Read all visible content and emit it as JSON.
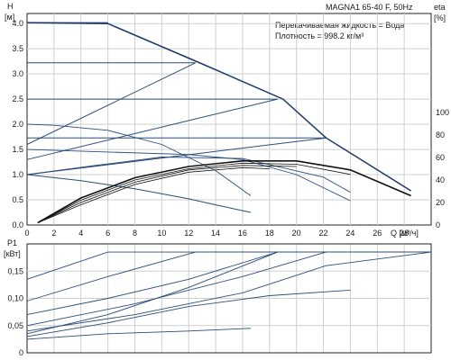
{
  "chart_data": [
    {
      "type": "line",
      "panel": "top",
      "title": "MAGNA1 65-40 F, 50Hz",
      "info": [
        "Перекачиваемая жидкость = Вода",
        "Плотность = 998.2 кг/м³"
      ],
      "xlabel": "Q [м³/ч]",
      "ylabel": [
        "H",
        "[м]"
      ],
      "y2label": [
        "eta",
        "[%]"
      ],
      "xlim": [
        0,
        30
      ],
      "ylim": [
        0,
        4.2
      ],
      "y2lim": [
        0,
        100
      ],
      "xticks": [
        "0",
        "2",
        "4",
        "6",
        "8",
        "10",
        "12",
        "14",
        "16",
        "18",
        "20",
        "22",
        "24",
        "26",
        "28"
      ],
      "yticks": [
        "0.0",
        "0.5",
        "1.0",
        "1.5",
        "2.0",
        "2.5",
        "3.0",
        "3.5",
        "4.0"
      ],
      "y2ticks": [
        "0",
        "20",
        "40",
        "60",
        "80",
        "100"
      ],
      "grid": true,
      "max_curve": [
        [
          0,
          4.02
        ],
        [
          6,
          4.0
        ],
        [
          13,
          3.2
        ],
        [
          19,
          2.5
        ],
        [
          22.2,
          1.73
        ],
        [
          28.5,
          0.68
        ]
      ],
      "constant_pressure": [
        {
          "H": 4.02,
          "x": [
            0,
            6
          ]
        },
        {
          "H": 3.22,
          "x": [
            0,
            12.5
          ]
        },
        {
          "H": 2.5,
          "x": [
            0,
            18.6
          ]
        },
        {
          "H": 1.73,
          "x": [
            0,
            22.2
          ]
        }
      ],
      "proportional_pressure": [
        {
          "x": [
            0,
            12.5
          ],
          "y": [
            1.6,
            3.22
          ]
        },
        {
          "x": [
            0,
            18.6
          ],
          "y": [
            1.3,
            2.5
          ]
        },
        {
          "x": [
            0,
            22.2
          ],
          "y": [
            1.0,
            1.73
          ]
        }
      ],
      "min_curve": {
        "x": [
          0,
          4,
          8,
          12,
          14,
          16.6
        ],
        "y": [
          1.0,
          0.88,
          0.72,
          0.52,
          0.4,
          0.25
        ]
      },
      "intermediate_curves": [
        {
          "x": [
            0,
            2,
            6,
            10,
            14,
            16.6
          ],
          "y": [
            2.0,
            1.98,
            1.88,
            1.6,
            1.08,
            0.58
          ]
        },
        {
          "x": [
            0,
            6,
            12,
            16,
            20,
            24
          ],
          "y": [
            1.5,
            1.45,
            1.4,
            1.3,
            1.0,
            0.48
          ]
        },
        {
          "x": [
            0,
            5,
            10,
            16,
            22,
            24
          ],
          "y": [
            1.0,
            1.18,
            1.35,
            1.32,
            0.95,
            0.65
          ]
        }
      ],
      "efficiency_curves": [
        {
          "x": [
            0.8,
            4,
            8,
            12,
            16,
            20,
            24,
            28.5
          ],
          "eta": [
            2,
            24,
            42,
            52,
            57,
            57,
            49,
            26
          ]
        },
        {
          "x": [
            0.8,
            4,
            8,
            12,
            16,
            20,
            24
          ],
          "eta": [
            2,
            22,
            40,
            50,
            55,
            54,
            45
          ]
        },
        {
          "x": [
            0.8,
            4,
            8,
            12,
            16,
            20
          ],
          "eta": [
            2,
            20,
            38,
            49,
            53,
            52
          ]
        },
        {
          "x": [
            0.8,
            4,
            8,
            12,
            16,
            18
          ],
          "eta": [
            2,
            18,
            36,
            47,
            51,
            50
          ]
        }
      ]
    },
    {
      "type": "line",
      "panel": "bottom",
      "ylabel": [
        "P1",
        "[кВт]"
      ],
      "xlim": [
        0,
        30
      ],
      "ylim": [
        0,
        0.2
      ],
      "yticks": [
        "0",
        "0,05",
        "0,10",
        "0,15"
      ],
      "grid": true,
      "max_power": 0.185,
      "power_curves": [
        {
          "x": [
            0,
            3,
            6,
            30
          ],
          "y": [
            0.135,
            0.16,
            0.185,
            0.185
          ]
        },
        {
          "x": [
            0,
            6,
            12.5,
            30
          ],
          "y": [
            0.095,
            0.14,
            0.185,
            0.185
          ]
        },
        {
          "x": [
            0,
            6,
            12,
            18.6,
            30
          ],
          "y": [
            0.07,
            0.1,
            0.135,
            0.185,
            0.185
          ]
        },
        {
          "x": [
            0,
            8,
            16,
            22.2,
            30
          ],
          "y": [
            0.05,
            0.09,
            0.14,
            0.185,
            0.185
          ]
        },
        {
          "x": [
            0,
            8,
            16,
            22.2,
            30
          ],
          "y": [
            0.04,
            0.07,
            0.11,
            0.16,
            0.185
          ]
        },
        {
          "x": [
            0,
            6,
            12,
            18.6
          ],
          "y": [
            0.035,
            0.07,
            0.12,
            0.185
          ]
        },
        {
          "x": [
            0,
            6,
            12,
            18,
            24
          ],
          "y": [
            0.03,
            0.055,
            0.085,
            0.105,
            0.115
          ]
        },
        {
          "x": [
            0,
            6,
            12,
            16.6
          ],
          "y": [
            0.025,
            0.035,
            0.04,
            0.045
          ]
        }
      ]
    }
  ]
}
